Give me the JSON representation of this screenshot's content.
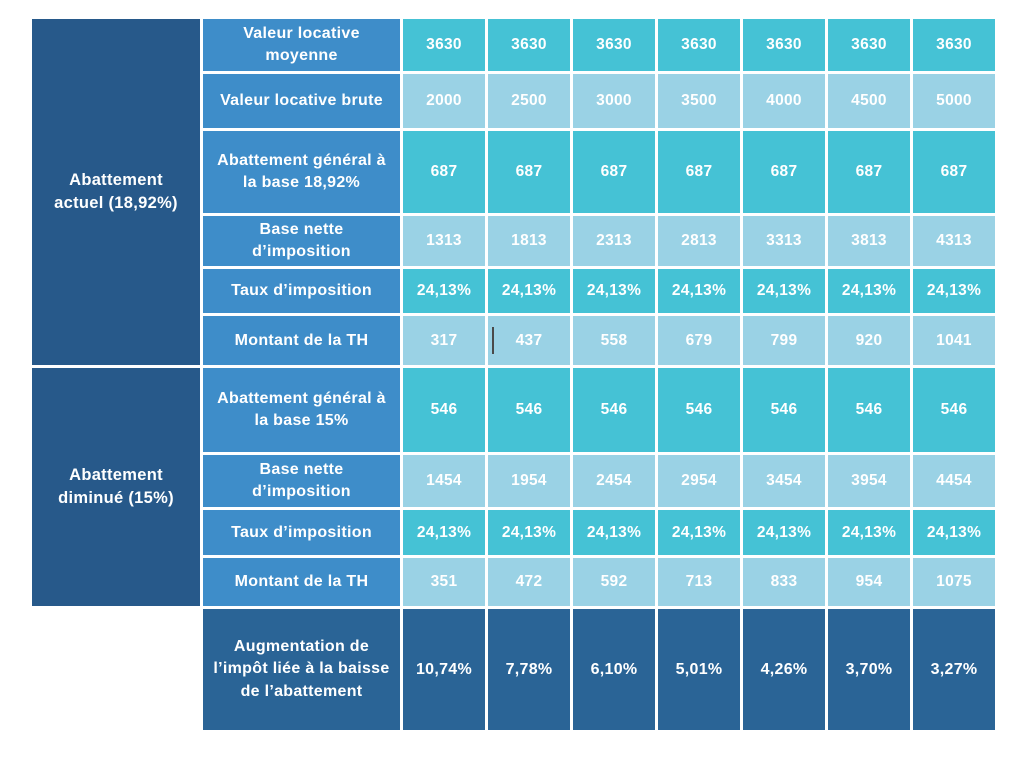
{
  "palette": {
    "navy": "#27598a",
    "azure": "#3e8dc9",
    "teal": "#45c2d5",
    "light": "#9ad2e5",
    "dark": "#2a6496",
    "text": "#ffffff",
    "page_background": "#ffffff"
  },
  "chart_data": {
    "type": "table",
    "title": "",
    "columns_note": "7 unlabeled value columns corresponding to Valeur locative brute 2000 → 5000",
    "sections": [
      {
        "label": "Abattement actuel (18,92%)",
        "rows": [
          {
            "header": "Valeur locative moyenne",
            "tone": "teal",
            "values": [
              "3630",
              "3630",
              "3630",
              "3630",
              "3630",
              "3630",
              "3630"
            ]
          },
          {
            "header": "Valeur locative brute",
            "tone": "light",
            "values": [
              "2000",
              "2500",
              "3000",
              "3500",
              "4000",
              "4500",
              "5000"
            ]
          },
          {
            "header": "Abattement général à la base 18,92%",
            "tone": "teal",
            "values": [
              "687",
              "687",
              "687",
              "687",
              "687",
              "687",
              "687"
            ]
          },
          {
            "header": "Base nette d’imposition",
            "tone": "light",
            "values": [
              "1313",
              "1813",
              "2313",
              "2813",
              "3313",
              "3813",
              "4313"
            ]
          },
          {
            "header": "Taux d’imposition",
            "tone": "teal",
            "values": [
              "24,13%",
              "24,13%",
              "24,13%",
              "24,13%",
              "24,13%",
              "24,13%",
              "24,13%"
            ]
          },
          {
            "header": "Montant de la TH",
            "tone": "light",
            "values": [
              "317",
              "437",
              "558",
              "679",
              "799",
              "920",
              "1041"
            ]
          }
        ]
      },
      {
        "label": "Abattement diminué (15%)",
        "rows": [
          {
            "header": "Abattement général à la base 15%",
            "tone": "teal",
            "values": [
              "546",
              "546",
              "546",
              "546",
              "546",
              "546",
              "546"
            ]
          },
          {
            "header": "Base nette d’imposition",
            "tone": "light",
            "values": [
              "1454",
              "1954",
              "2454",
              "2954",
              "3454",
              "3954",
              "4454"
            ]
          },
          {
            "header": "Taux d’imposition",
            "tone": "teal",
            "values": [
              "24,13%",
              "24,13%",
              "24,13%",
              "24,13%",
              "24,13%",
              "24,13%",
              "24,13%"
            ]
          },
          {
            "header": "Montant de la TH",
            "tone": "light",
            "values": [
              "351",
              "472",
              "592",
              "713",
              "833",
              "954",
              "1075"
            ]
          }
        ]
      }
    ],
    "footer": {
      "label": "Augmentation de l’impôt liée à la baisse\nde l’abattement",
      "tone": "dark",
      "values": [
        "10,74%",
        "7,78%",
        "6,10%",
        "5,01%",
        "4,26%",
        "3,70%",
        "3,27%"
      ]
    }
  }
}
